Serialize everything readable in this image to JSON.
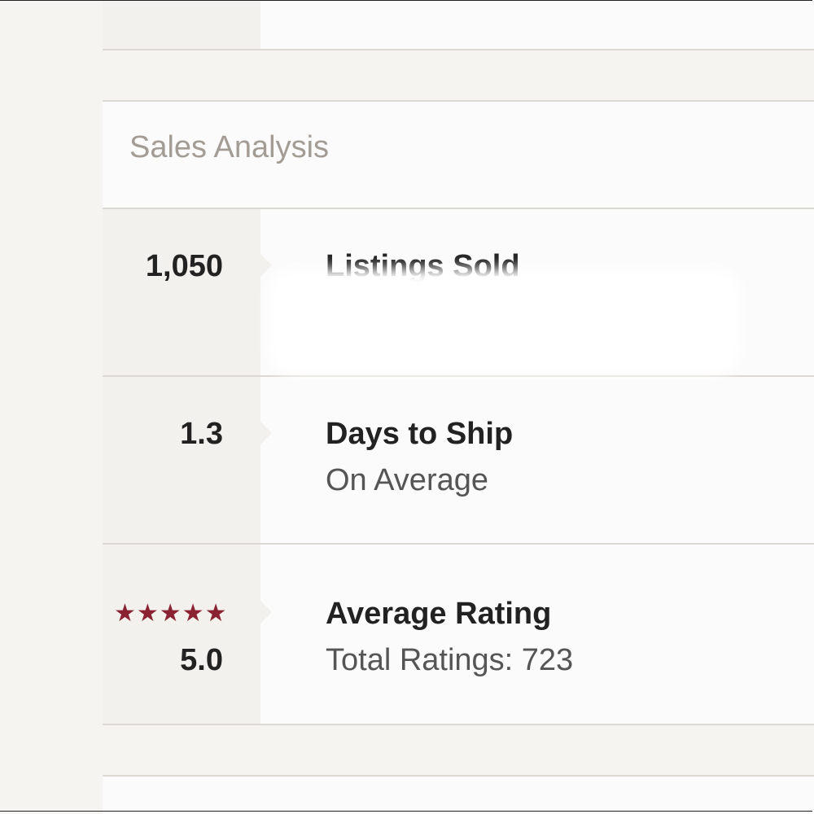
{
  "section_title": "Sales Analysis",
  "stats": [
    {
      "value": "1,050",
      "label": "Listings Sold"
    },
    {
      "value": "1.3",
      "label": "Days to Ship",
      "sublabel": "On Average"
    },
    {
      "value": "5.0",
      "label": "Average Rating",
      "sublabel": "Total Ratings: 723"
    }
  ]
}
